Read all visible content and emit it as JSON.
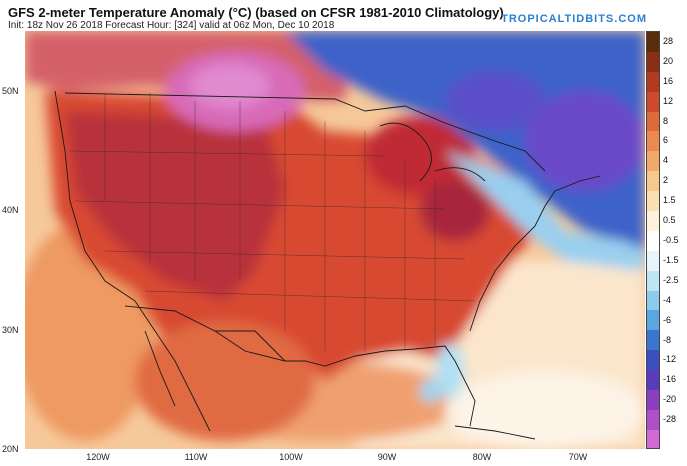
{
  "header": {
    "title": "GFS 2-meter Temperature Anomaly (°C) (based on CFSR 1981-2010 Climatology)",
    "subtitle": "Init: 18z Nov 26 2018   Forecast Hour: [324]   valid at 06z Mon, Dec 10 2018",
    "brand": "TROPICALTIDBITS.COM"
  },
  "axes": {
    "latitude_labels": [
      "50N",
      "40N",
      "30N",
      "20N"
    ],
    "longitude_labels": [
      "120W",
      "110W",
      "100W",
      "90W",
      "80W",
      "70W"
    ]
  },
  "colorbar": {
    "labels": [
      "28",
      "20",
      "16",
      "12",
      "8",
      "6",
      "4",
      "2",
      "1.5",
      "0.5",
      "-0.5",
      "-1.5",
      "-2.5",
      "-4",
      "-6",
      "-8",
      "-12",
      "-16",
      "-20",
      "-28"
    ],
    "colors": [
      "#5a2d0c",
      "#8a2f14",
      "#b33a1e",
      "#cf4a2a",
      "#de6a3c",
      "#ea8a50",
      "#f2a868",
      "#f7c88c",
      "#fadfb2",
      "#fff2dc",
      "#ffffff",
      "#e6f4fb",
      "#bfe4f5",
      "#8ccbec",
      "#5aa6e0",
      "#3a76cf",
      "#3b4fc0",
      "#5a3bb8",
      "#8a3fbf",
      "#b04fc8",
      "#d36ad4"
    ]
  },
  "map_colors": {
    "ocean": "#f6d3ac",
    "warm_land": "#d8503a",
    "hot_land": "#b8283a",
    "very_hot": "#a03060",
    "canada_pink": "#d86ab8",
    "cold_blue": "#3e62c8",
    "cold_purple": "#6a48c8",
    "light_blue": "#9ad6f0",
    "pale": "#fbe8d2"
  }
}
